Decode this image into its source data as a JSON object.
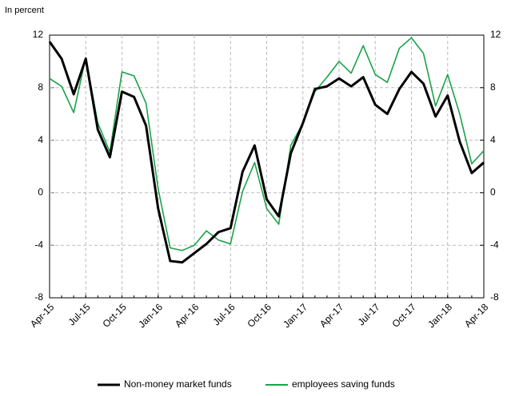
{
  "chart_data": {
    "type": "line",
    "subtitle": "In percent",
    "categories": [
      "Apr-15",
      null,
      null,
      "Jul-15",
      null,
      null,
      "Oct-15",
      null,
      null,
      "Jan-16",
      null,
      null,
      "Apr-16",
      null,
      null,
      "Jul-16",
      null,
      null,
      "Oct-16",
      null,
      null,
      "Jan-17",
      null,
      null,
      "Apr-17",
      null,
      null,
      "Jul-17",
      null,
      null,
      "Oct-17",
      null,
      null,
      "Jan-18",
      null,
      null,
      "Apr-18"
    ],
    "series": [
      {
        "name": "Non-money market funds",
        "color": "#000000",
        "values": [
          11.5,
          10.2,
          7.5,
          10.2,
          4.8,
          2.7,
          7.7,
          7.3,
          5.1,
          -1.2,
          -5.2,
          -5.3,
          -4.6,
          -3.9,
          -3.0,
          -2.7,
          1.6,
          3.6,
          -0.5,
          -1.8,
          3.0,
          5.3,
          7.9,
          8.1,
          8.7,
          8.1,
          8.8,
          6.7,
          6.0,
          7.9,
          9.2,
          8.3,
          5.8,
          7.4,
          3.9,
          1.5,
          2.3
        ]
      },
      {
        "name": "employees saving funds",
        "color": "#1aa34a",
        "values": [
          8.7,
          8.1,
          6.1,
          10.3,
          5.3,
          3.1,
          9.2,
          8.9,
          6.8,
          0.3,
          -4.2,
          -4.4,
          -4.0,
          -2.9,
          -3.6,
          -3.9,
          0.1,
          2.3,
          -1.2,
          -2.4,
          3.6,
          5.3,
          7.7,
          8.8,
          10.0,
          9.1,
          11.2,
          9.0,
          8.4,
          11.0,
          11.8,
          10.6,
          6.6,
          9.0,
          6.0,
          2.2,
          3.2
        ]
      }
    ],
    "ylim": [
      -8,
      12
    ],
    "yticks": [
      -8,
      -4,
      0,
      4,
      8,
      12
    ],
    "y2lim": [
      -8,
      12
    ],
    "y2ticks": [
      -8,
      -4,
      0,
      4,
      8,
      12
    ],
    "grid": true
  }
}
